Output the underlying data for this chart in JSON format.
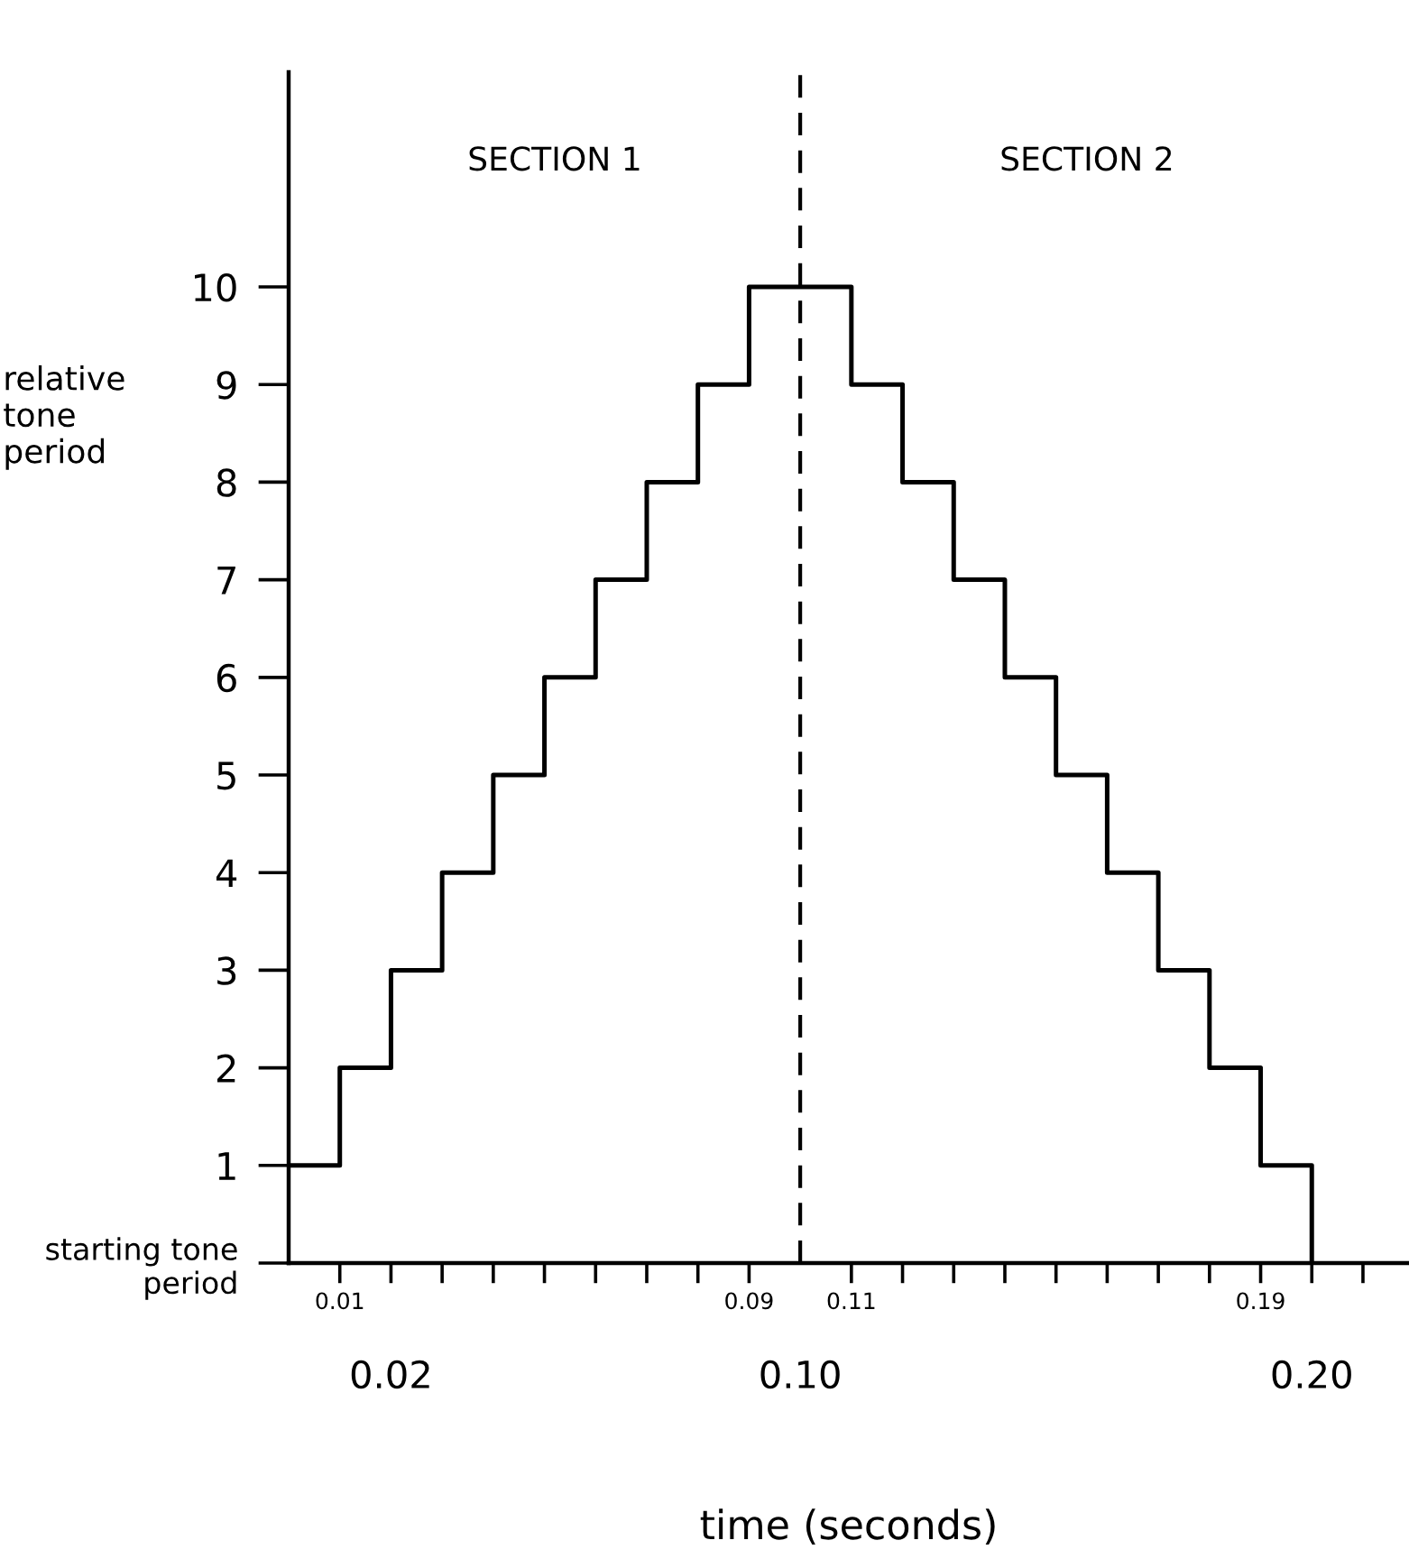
{
  "chart_data": {
    "type": "step",
    "xlabel": "time (seconds)",
    "ylabel": "relative\ntone\nperiod",
    "x": [
      0,
      0.01,
      0.02,
      0.03,
      0.04,
      0.05,
      0.06,
      0.07,
      0.08,
      0.09,
      0.1,
      0.11,
      0.12,
      0.13,
      0.14,
      0.15,
      0.16,
      0.17,
      0.18,
      0.19,
      0.2
    ],
    "series": [
      {
        "color": "#000000",
        "values": [
          1,
          2,
          3,
          4,
          5,
          6,
          7,
          8,
          9,
          10,
          10,
          9,
          8,
          7,
          6,
          5,
          4,
          3,
          2,
          1,
          0
        ]
      }
    ],
    "xlim": [
      0,
      0.219
    ],
    "ylim": [
      0,
      12.2
    ],
    "xticks": [
      0.01,
      {
        "value": 0.02,
        "label": null
      },
      {
        "value": 0.03,
        "label": null
      },
      {
        "value": 0.04,
        "label": null
      },
      {
        "value": 0.05,
        "label": null
      },
      {
        "value": 0.06,
        "label": null
      },
      {
        "value": 0.07,
        "label": null
      },
      {
        "value": 0.08,
        "label": null
      },
      0.09,
      0.11,
      {
        "value": 0.12,
        "label": null
      },
      {
        "value": 0.13,
        "label": null
      },
      {
        "value": 0.14,
        "label": null
      },
      {
        "value": 0.15,
        "label": null
      },
      {
        "value": 0.16,
        "label": null
      },
      {
        "value": 0.17,
        "label": null
      },
      {
        "value": 0.18,
        "label": null
      },
      0.19,
      {
        "value": 0.2,
        "label": null
      },
      {
        "value": 0.21,
        "label": null
      }
    ],
    "x2lim": [
      0,
      0.219
    ],
    "x2ticks": [
      {
        "value": 0.02,
        "label": "0.02"
      },
      {
        "value": 0.1,
        "label": "0.10"
      },
      {
        "value": 0.2,
        "label": "0.20"
      }
    ],
    "yticks": [
      {
        "value": 0,
        "label": "starting tone\nperiod"
      },
      1,
      2,
      3,
      4,
      5,
      6,
      7,
      8,
      9,
      10
    ],
    "ref_lines": [
      {
        "axis": "x",
        "value": 0.1,
        "color": "#000000",
        "line_style": "dashed"
      }
    ],
    "annotations": [
      "SECTION 1",
      "SECTION 2"
    ],
    "grid": false,
    "legend": false,
    "marker": "none",
    "line_style": "solid"
  }
}
